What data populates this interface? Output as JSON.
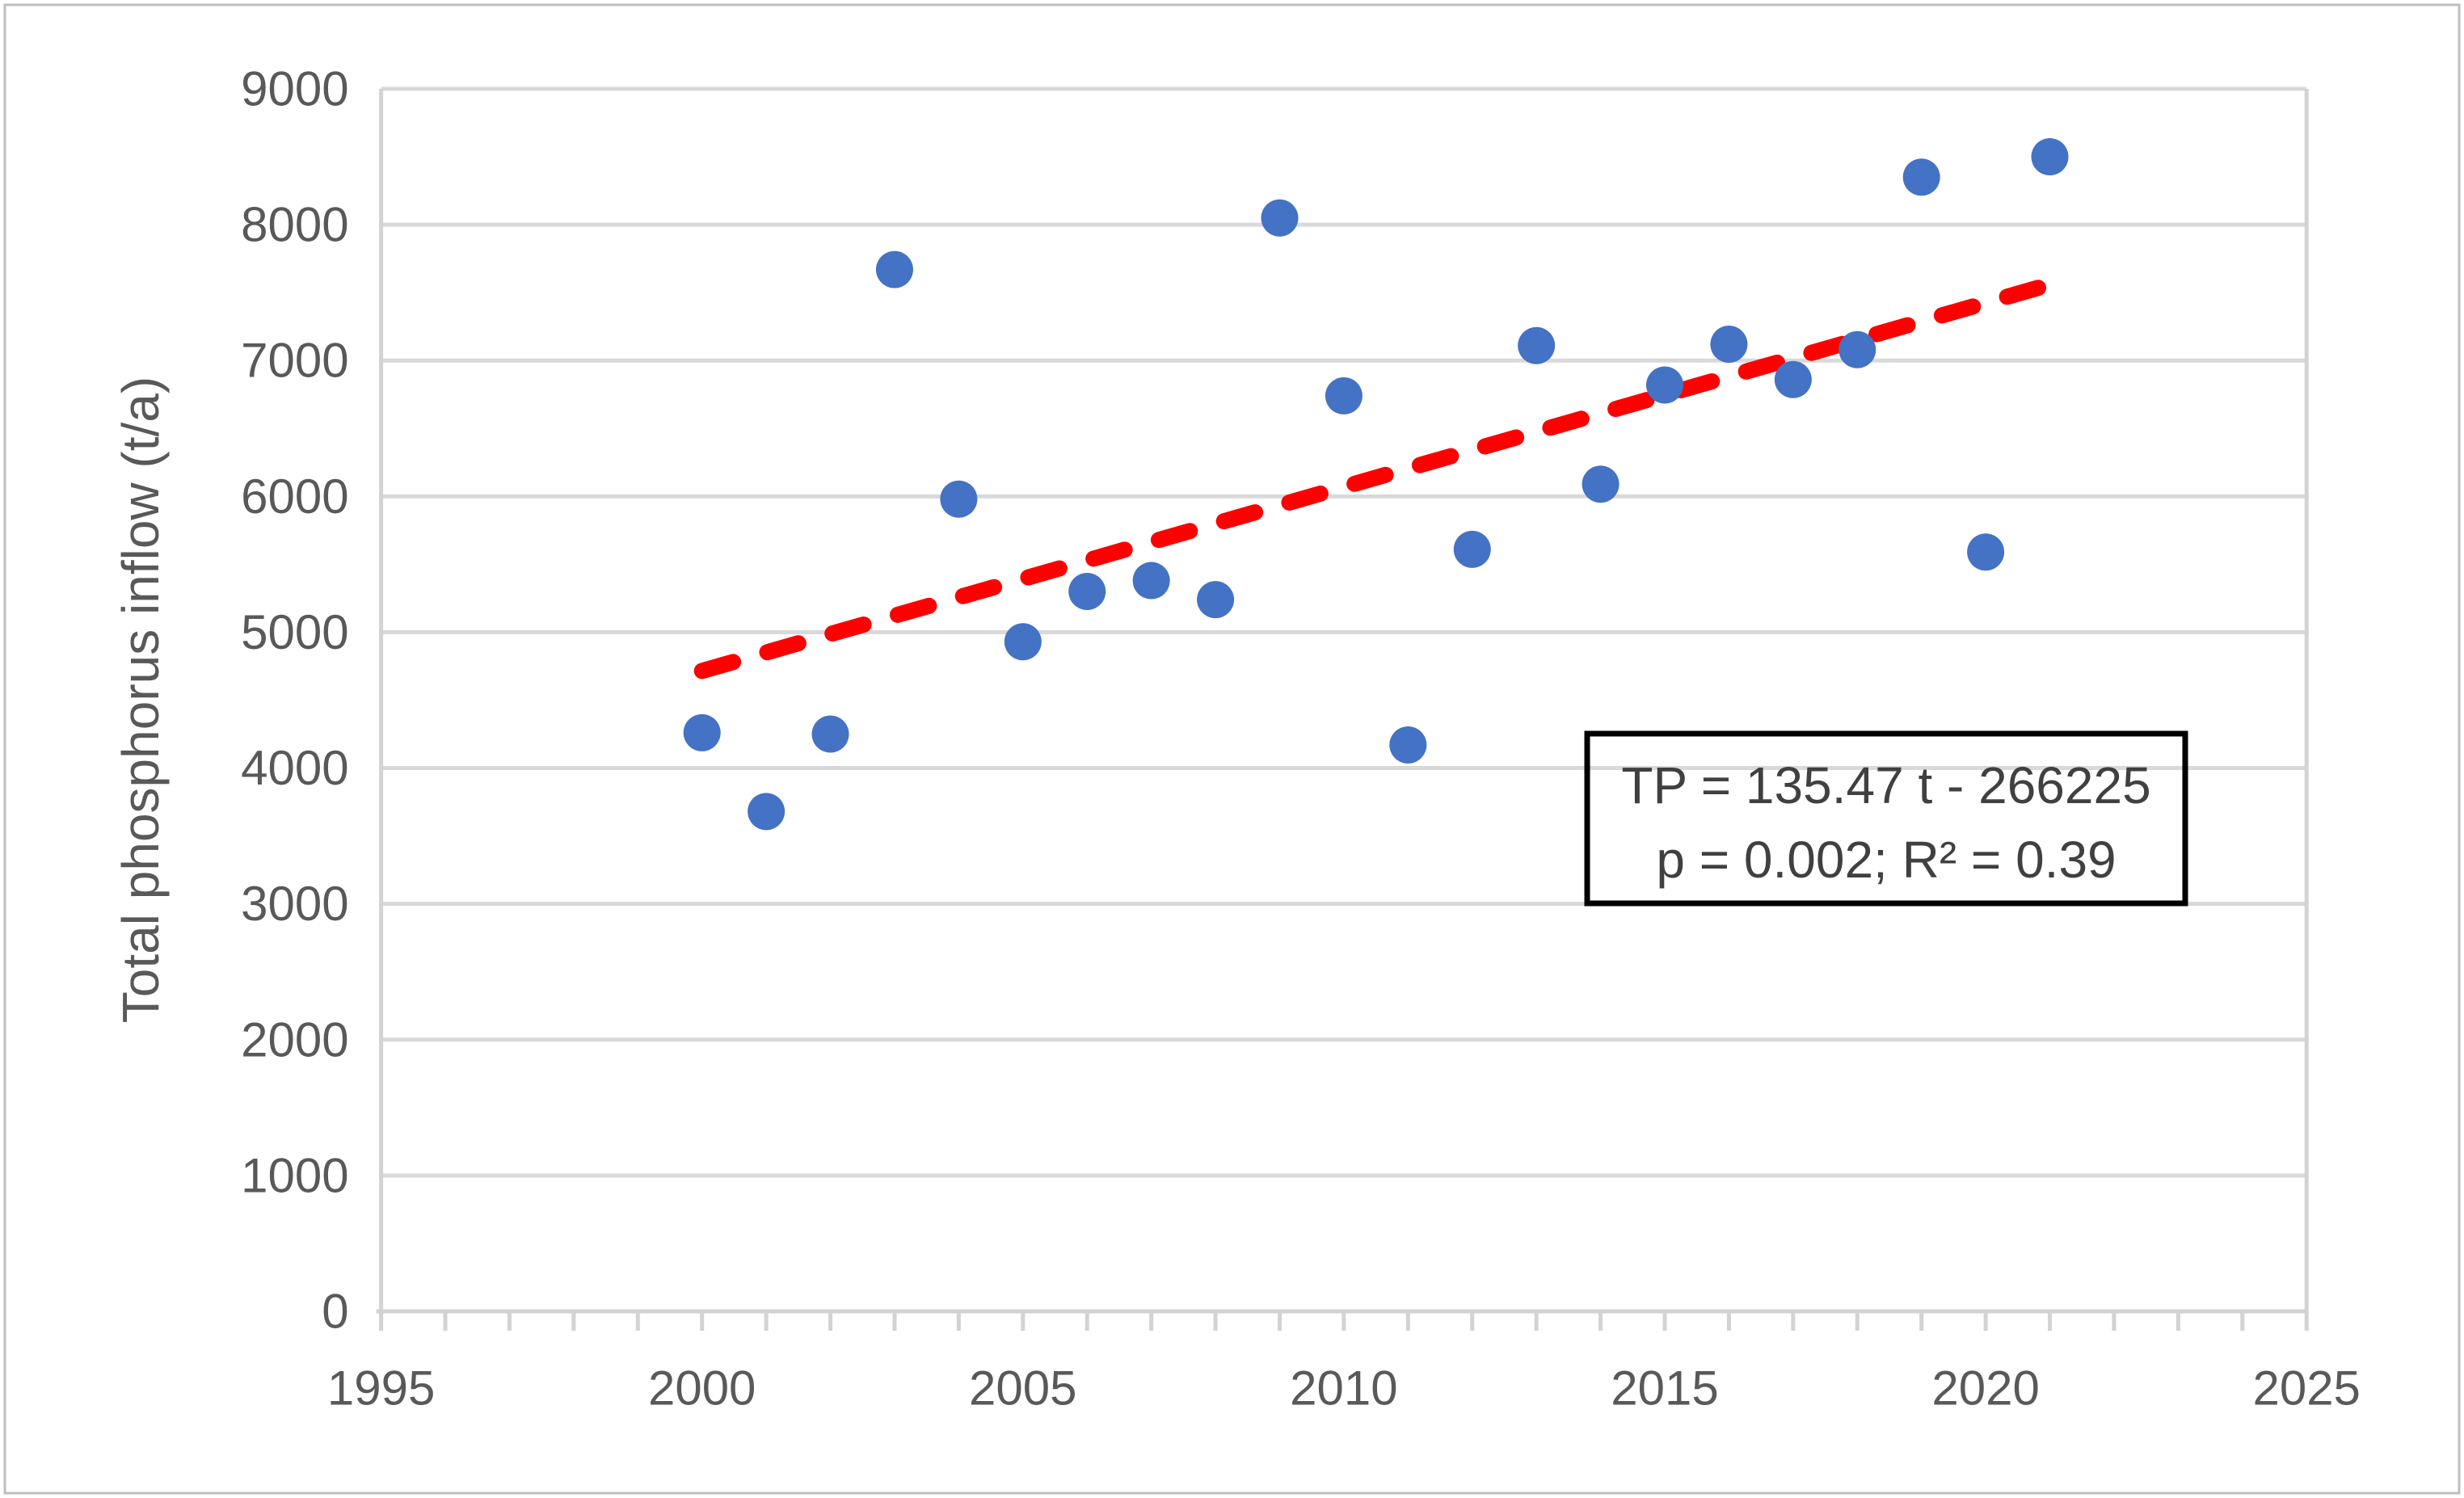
{
  "chart_data": {
    "type": "scatter",
    "title": "",
    "xlabel": "",
    "ylabel": "Total phosphorus inflow (t/a)",
    "xlim": [
      1995,
      2025
    ],
    "ylim": [
      0,
      9000
    ],
    "x_major_ticks": [
      1995,
      2000,
      2005,
      2010,
      2015,
      2020,
      2025
    ],
    "x_minor_tick_step": 1,
    "y_ticks": [
      0,
      1000,
      2000,
      3000,
      4000,
      5000,
      6000,
      7000,
      8000,
      9000
    ],
    "grid": "horizontal",
    "legend": "none",
    "series": [
      {
        "name": "Total phosphorus inflow",
        "type": "scatter",
        "x": [
          2000,
          2001,
          2002,
          2003,
          2004,
          2005,
          2006,
          2007,
          2008,
          2009,
          2010,
          2011,
          2012,
          2013,
          2014,
          2015,
          2016,
          2017,
          2018,
          2019,
          2020,
          2021
        ],
        "y": [
          4260,
          3680,
          4250,
          7670,
          5980,
          4930,
          5300,
          5380,
          5240,
          8050,
          6740,
          4170,
          5610,
          7110,
          6090,
          6820,
          7120,
          6860,
          7080,
          8350,
          5590,
          8500
        ]
      },
      {
        "name": "Linear trend",
        "type": "dashed-line",
        "x": [
          2000,
          2021
        ],
        "y": [
          4715,
          7560
        ]
      }
    ],
    "annotation": {
      "line1": "TP = 135.47 t - 266225",
      "line2": "p = 0.002; R² = 0.39"
    }
  },
  "colors": {
    "point": "#4472C4",
    "trend": "#FF0000",
    "gridline": "#D9D9D9",
    "axis": "#D3D3D3",
    "tick_text": "#595959",
    "annotation_text": "#404040",
    "annotation_border": "#000000",
    "outer_border": "#BFBFBF"
  }
}
